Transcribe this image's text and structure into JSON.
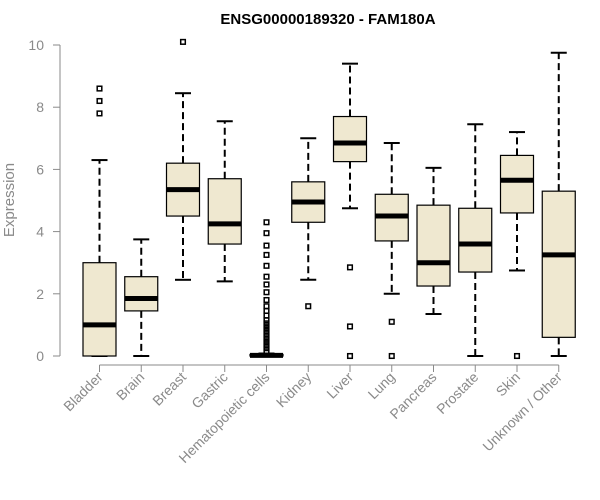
{
  "chart_data": {
    "type": "boxplot",
    "title": "ENSG00000189320 - FAM180A",
    "xlabel": "",
    "ylabel": "Expression",
    "ylim": [
      0,
      10
    ],
    "yticks": [
      0,
      2,
      4,
      6,
      8,
      10
    ],
    "grid": false,
    "colors": {
      "box_fill": "#efe8d0",
      "stroke": "#000000",
      "axis": "#8a8a8a"
    },
    "categories": [
      "Bladder",
      "Brain",
      "Breast",
      "Gastric",
      "Hematopoietic cells",
      "Kidney",
      "Liver",
      "Lung",
      "Pancreas",
      "Prostate",
      "Skin",
      "Unknown / Other"
    ],
    "boxes": [
      {
        "category": "Bladder",
        "whisker_low": 0,
        "q1": 0,
        "median": 1.0,
        "q3": 3.0,
        "whisker_high": 6.3,
        "outliers": [
          7.8,
          8.2,
          8.6
        ]
      },
      {
        "category": "Brain",
        "whisker_low": 0,
        "q1": 1.45,
        "median": 1.85,
        "q3": 2.55,
        "whisker_high": 3.75,
        "outliers": []
      },
      {
        "category": "Breast",
        "whisker_low": 2.45,
        "q1": 4.5,
        "median": 5.35,
        "q3": 6.2,
        "whisker_high": 8.45,
        "outliers": [
          10.1
        ]
      },
      {
        "category": "Gastric",
        "whisker_low": 2.4,
        "q1": 3.6,
        "median": 4.25,
        "q3": 5.7,
        "whisker_high": 7.55,
        "outliers": []
      },
      {
        "category": "Hematopoietic cells",
        "whisker_low": 0,
        "q1": 0,
        "median": 0.02,
        "q3": 0.05,
        "whisker_high": 0.08,
        "outliers": [
          0.15,
          0.25,
          0.35,
          0.45,
          0.55,
          0.65,
          0.75,
          0.85,
          0.95,
          1.05,
          1.15,
          1.3,
          1.45,
          1.6,
          1.8,
          2.05,
          2.3,
          2.55,
          2.9,
          3.25,
          3.55,
          3.95,
          4.3
        ]
      },
      {
        "category": "Kidney",
        "whisker_low": 2.45,
        "q1": 4.3,
        "median": 4.95,
        "q3": 5.6,
        "whisker_high": 7.0,
        "outliers": [
          1.6
        ]
      },
      {
        "category": "Liver",
        "whisker_low": 4.75,
        "q1": 6.25,
        "median": 6.85,
        "q3": 7.7,
        "whisker_high": 9.4,
        "outliers": [
          2.85,
          0.95,
          0.0
        ]
      },
      {
        "category": "Lung",
        "whisker_low": 2.0,
        "q1": 3.7,
        "median": 4.5,
        "q3": 5.2,
        "whisker_high": 6.85,
        "outliers": [
          1.1,
          0.0
        ]
      },
      {
        "category": "Pancreas",
        "whisker_low": 1.35,
        "q1": 2.25,
        "median": 3.0,
        "q3": 4.85,
        "whisker_high": 6.05,
        "outliers": []
      },
      {
        "category": "Prostate",
        "whisker_low": 0,
        "q1": 2.7,
        "median": 3.6,
        "q3": 4.75,
        "whisker_high": 7.45,
        "outliers": []
      },
      {
        "category": "Skin",
        "whisker_low": 2.75,
        "q1": 4.6,
        "median": 5.65,
        "q3": 6.45,
        "whisker_high": 7.2,
        "outliers": [
          0.0
        ]
      },
      {
        "category": "Unknown / Other",
        "whisker_low": 0,
        "q1": 0.6,
        "median": 3.25,
        "q3": 5.3,
        "whisker_high": 9.75,
        "outliers": []
      }
    ]
  }
}
